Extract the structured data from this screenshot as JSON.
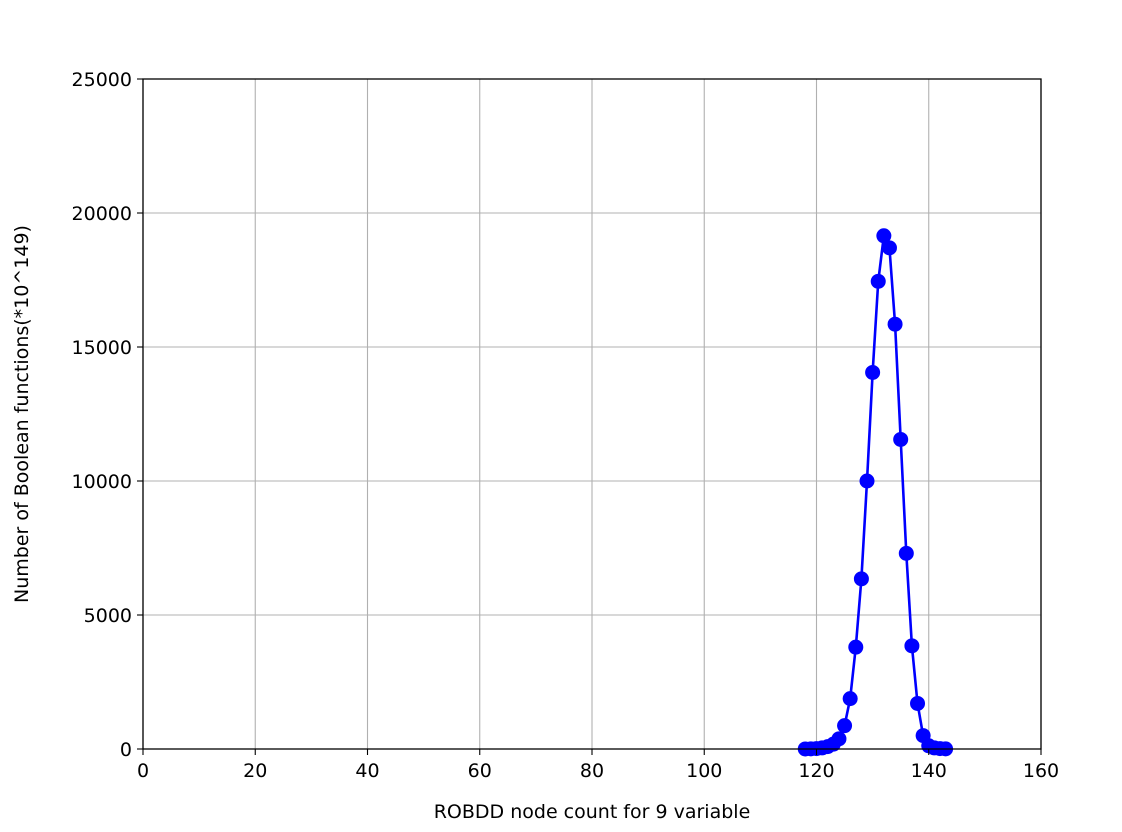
{
  "chart_data": {
    "type": "line",
    "title": "",
    "xlabel": "ROBDD node count for 9 variable",
    "ylabel": "Number of Boolean functions(*10^149)",
    "xlim": [
      0,
      160
    ],
    "ylim": [
      0,
      25000
    ],
    "xticks": [
      0,
      20,
      40,
      60,
      80,
      100,
      120,
      140,
      160
    ],
    "yticks": [
      0,
      5000,
      10000,
      15000,
      20000,
      25000
    ],
    "grid": true,
    "legend": "none",
    "series": [
      {
        "color": "#0000ff",
        "marker": "circle",
        "x": [
          118,
          119,
          120,
          121,
          122,
          123,
          124,
          125,
          126,
          127,
          128,
          129,
          130,
          131,
          132,
          133,
          134,
          135,
          136,
          137,
          138,
          139,
          140,
          141,
          142,
          143
        ],
        "y": [
          2,
          5,
          15,
          40,
          90,
          180,
          380,
          870,
          1880,
          3800,
          6350,
          10000,
          14050,
          17450,
          19150,
          18700,
          15850,
          11550,
          7300,
          3850,
          1700,
          500,
          120,
          40,
          15,
          5
        ]
      }
    ]
  }
}
